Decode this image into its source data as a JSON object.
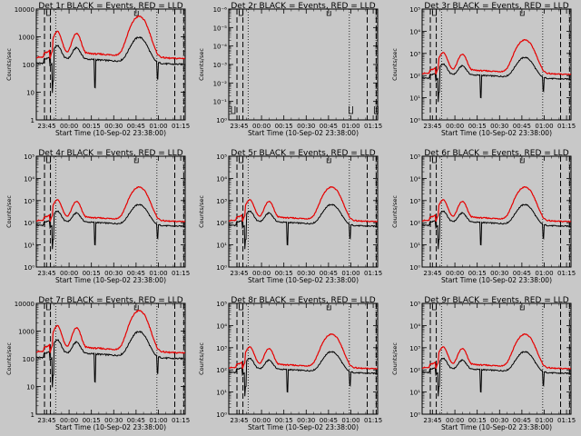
{
  "figure": {
    "background": "#c8c8c8",
    "event_color": "#000000",
    "lld_color": "#e60000",
    "xlabel": "Start Time (10-Sep-02 23:38:00)",
    "ylabel": "Counts/sec",
    "x_ticks": [
      "23:45",
      "00:00",
      "00:15",
      "00:30",
      "00:45",
      "01:00",
      "01:15"
    ],
    "x_range_minutes": [
      0,
      100
    ],
    "x_tick_minutes": [
      7,
      22,
      37,
      52,
      67,
      82,
      97
    ],
    "dashed_markers_min": [
      5.5,
      9.5,
      93,
      99
    ],
    "dotted_markers_min": [
      13,
      81
    ]
  },
  "chart_data": [
    {
      "type": "line",
      "title": "Det 1r BLACK = Events, RED = LLD",
      "ylog": [
        0,
        4
      ],
      "yticks": [
        "1",
        "10",
        "100",
        "1000",
        "10000"
      ],
      "event_base": 160,
      "lld_base": 260,
      "event_peaks": [
        [
          14,
          3.0
        ],
        [
          27,
          2.5
        ],
        [
          69,
          8.0
        ]
      ],
      "lld_peaks": [
        [
          14,
          6
        ],
        [
          27,
          5
        ],
        [
          69,
          28
        ]
      ],
      "has_data": true
    },
    {
      "type": "line",
      "title": "Det 2r BLACK = Events, RED = LLD",
      "ylog": [
        -1,
        -6
      ],
      "yticks": [
        "10⁰",
        "10⁻¹",
        "10⁻²",
        "10⁻³",
        "10⁻⁴",
        "10⁻⁵",
        "10⁻⁶"
      ],
      "event_base": null,
      "lld_base": null,
      "event_peaks": [],
      "lld_peaks": [],
      "has_data": false
    },
    {
      "type": "line",
      "title": "Det 3r BLACK = Events, RED = LLD",
      "ylog": [
        0,
        5
      ],
      "yticks": [
        "10⁰",
        "10¹",
        "10²",
        "10³",
        "10⁴",
        "10⁵"
      ],
      "event_base": 110,
      "lld_base": 180,
      "event_peaks": [
        [
          14,
          3.0
        ],
        [
          27,
          2.5
        ],
        [
          69,
          8.0
        ]
      ],
      "lld_peaks": [
        [
          14,
          6
        ],
        [
          27,
          5
        ],
        [
          69,
          30
        ]
      ],
      "has_data": true
    },
    {
      "type": "line",
      "title": "Det 4r BLACK = Events, RED = LLD",
      "ylog": [
        0,
        5
      ],
      "yticks": [
        "10⁰",
        "10¹",
        "10²",
        "10³",
        "10⁴",
        "10⁵"
      ],
      "event_base": 110,
      "lld_base": 180,
      "event_peaks": [
        [
          14,
          3.0
        ],
        [
          27,
          2.5
        ],
        [
          69,
          8.0
        ]
      ],
      "lld_peaks": [
        [
          14,
          6
        ],
        [
          27,
          5
        ],
        [
          69,
          30
        ]
      ],
      "has_data": true
    },
    {
      "type": "line",
      "title": "Det 5r BLACK = Events, RED = LLD",
      "ylog": [
        0,
        5
      ],
      "yticks": [
        "10⁰",
        "10¹",
        "10²",
        "10³",
        "10⁴",
        "10⁵"
      ],
      "event_base": 110,
      "lld_base": 180,
      "event_peaks": [
        [
          14,
          3.0
        ],
        [
          27,
          2.5
        ],
        [
          69,
          8.0
        ]
      ],
      "lld_peaks": [
        [
          14,
          6
        ],
        [
          27,
          5
        ],
        [
          69,
          30
        ]
      ],
      "has_data": true
    },
    {
      "type": "line",
      "title": "Det 6r BLACK = Events, RED = LLD",
      "ylog": [
        0,
        5
      ],
      "yticks": [
        "10⁰",
        "10¹",
        "10²",
        "10³",
        "10⁴",
        "10⁵"
      ],
      "event_base": 110,
      "lld_base": 180,
      "event_peaks": [
        [
          14,
          3.0
        ],
        [
          27,
          2.5
        ],
        [
          69,
          8.0
        ]
      ],
      "lld_peaks": [
        [
          14,
          6
        ],
        [
          27,
          5
        ],
        [
          69,
          30
        ]
      ],
      "has_data": true
    },
    {
      "type": "line",
      "title": "Det 7r BLACK = Events, RED = LLD",
      "ylog": [
        0,
        4
      ],
      "yticks": [
        "1",
        "10",
        "100",
        "1000",
        "10000"
      ],
      "event_base": 160,
      "lld_base": 260,
      "event_peaks": [
        [
          14,
          3.0
        ],
        [
          27,
          2.5
        ],
        [
          69,
          8.0
        ]
      ],
      "lld_peaks": [
        [
          14,
          6
        ],
        [
          27,
          5
        ],
        [
          69,
          28
        ]
      ],
      "has_data": true
    },
    {
      "type": "line",
      "title": "Det 8r BLACK = Events, RED = LLD",
      "ylog": [
        0,
        5
      ],
      "yticks": [
        "10⁰",
        "10¹",
        "10²",
        "10³",
        "10⁴",
        "10⁵"
      ],
      "event_base": 110,
      "lld_base": 180,
      "event_peaks": [
        [
          14,
          3.0
        ],
        [
          27,
          2.5
        ],
        [
          69,
          8.0
        ]
      ],
      "lld_peaks": [
        [
          14,
          6
        ],
        [
          27,
          5
        ],
        [
          69,
          30
        ]
      ],
      "has_data": true
    },
    {
      "type": "line",
      "title": "Det 9r BLACK = Events, RED = LLD",
      "ylog": [
        0,
        5
      ],
      "yticks": [
        "10⁰",
        "10¹",
        "10²",
        "10³",
        "10⁴",
        "10⁵"
      ],
      "event_base": 110,
      "lld_base": 180,
      "event_peaks": [
        [
          14,
          3.0
        ],
        [
          27,
          2.5
        ],
        [
          69,
          8.0
        ]
      ],
      "lld_peaks": [
        [
          14,
          6
        ],
        [
          27,
          5
        ],
        [
          69,
          30
        ]
      ],
      "has_data": true
    }
  ]
}
